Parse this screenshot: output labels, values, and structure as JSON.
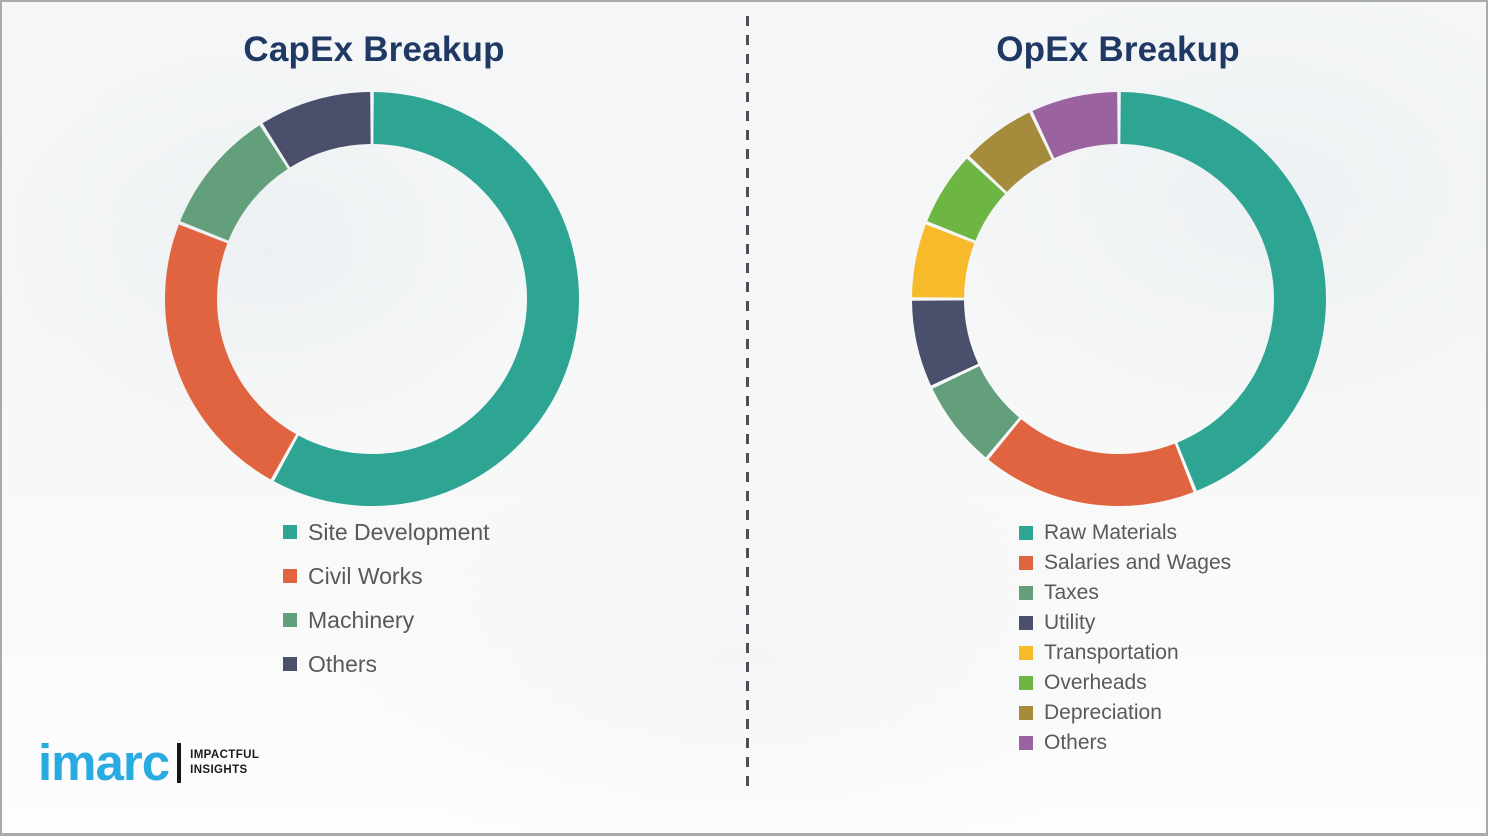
{
  "page": {
    "background_color": "#f6f7f8",
    "border_color": "#a9a9a9",
    "divider_style": "vertical-dashed",
    "divider_color": "#4d4f52",
    "title_color": "#1f3864",
    "legend_text_color": "#595959"
  },
  "chart_data": [
    {
      "id": "capex",
      "type": "pie",
      "subtype": "donut",
      "title": "CapEx Breakup",
      "values_estimated_from_arc_angles": true,
      "start_angle_deg": 0,
      "direction": "clockwise",
      "donut_hole_ratio": 0.75,
      "legend_position": "below-left",
      "segments": [
        {
          "label": "Site Development",
          "value": 58,
          "color": "#2ea593"
        },
        {
          "label": "Civil Works",
          "value": 23,
          "color": "#e0643f"
        },
        {
          "label": "Machinery",
          "value": 10,
          "color": "#639f7b"
        },
        {
          "label": "Others",
          "value": 9,
          "color": "#4a4f6b"
        }
      ]
    },
    {
      "id": "opex",
      "type": "pie",
      "subtype": "donut",
      "title": "OpEx Breakup",
      "values_estimated_from_arc_angles": true,
      "start_angle_deg": 0,
      "direction": "clockwise",
      "donut_hole_ratio": 0.75,
      "legend_position": "below-left",
      "segments": [
        {
          "label": "Raw Materials",
          "value": 44,
          "color": "#2ea593"
        },
        {
          "label": "Salaries and Wages",
          "value": 17,
          "color": "#e0643f"
        },
        {
          "label": "Taxes",
          "value": 7,
          "color": "#639f7b"
        },
        {
          "label": "Utility",
          "value": 7,
          "color": "#4a4f6b"
        },
        {
          "label": "Transportation",
          "value": 6,
          "color": "#f7ba2a"
        },
        {
          "label": "Overheads",
          "value": 6,
          "color": "#6db644"
        },
        {
          "label": "Depreciation",
          "value": 6,
          "color": "#a58b3c"
        },
        {
          "label": "Others",
          "value": 7,
          "color": "#9a63a0"
        }
      ]
    }
  ],
  "logo": {
    "brand": "imarc",
    "brand_color": "#29abe2",
    "tagline_line1": "IMPACTFUL",
    "tagline_line2": "INSIGHTS"
  }
}
